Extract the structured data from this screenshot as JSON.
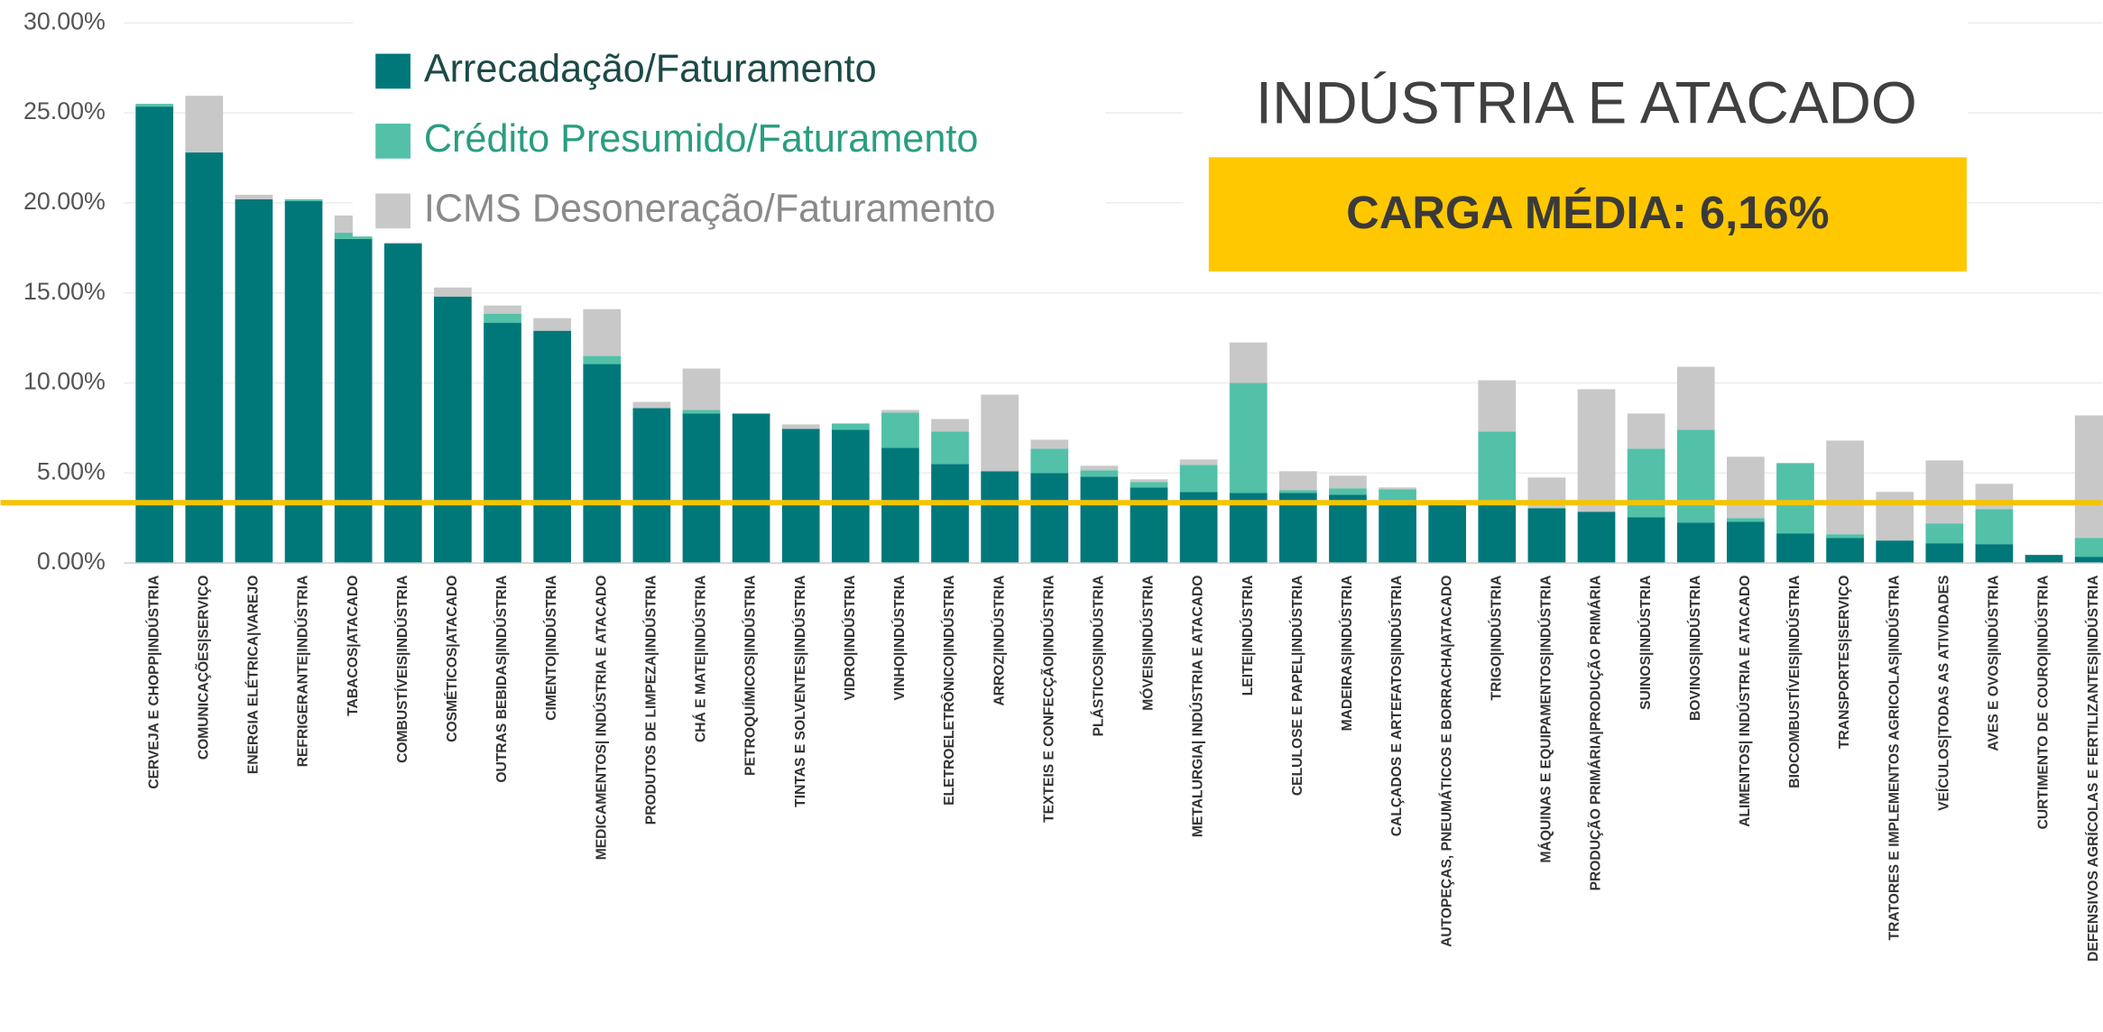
{
  "chart_data": {
    "type": "stacked_bar",
    "title": "INDÚSTRIA E ATACADO",
    "subtitle": "CARGA MÉDIA: 6,16%",
    "categories": [
      "CERVEJA E CHOPP|INDÚSTRIA",
      "COMUNICAÇÕES|SERVIÇO",
      "ENERGIA ELÉTRICA|VAREJO",
      "REFRIGERANTE|INDÚSTRIA",
      "TABACOS|ATACADO",
      "COMBUSTÍVEIS|INDÚSTRIA",
      "COSMÉTICOS|ATACADO",
      "OUTRAS BEBIDAS|INDÚSTRIA",
      "CIMENTO|INDÚSTRIA",
      "MEDICAMENTOS| INDÚSTRIA E ATACADO",
      "PRODUTOS DE LIMPEZA|INDÚSTRIA",
      "CHÁ E MATE|INDÚSTRIA",
      "PETROQUÍMICOS|INDÚSTRIA",
      "TINTAS E SOLVENTES|INDÚSTRIA",
      "VIDRO|INDÚSTRIA",
      "VINHO|INDÚSTRIA",
      "ELETROELETRÔNICO|INDÚSTRIA",
      "ARROZ|INDÚSTRIA",
      "TEXTEIS E CONFECÇÃO|INDÚSTRIA",
      "PLÁSTICOS|INDÚSTRIA",
      "MÓVEIS|INDÚSTRIA",
      "METALURGIA| INDÚSTRIA E ATACADO",
      "LEITE|INDÚSTRIA",
      "CELULOSE E PAPEL|INDÚSTRIA",
      "MADEIRAS|INDÚSTRIA",
      "CALÇADOS E ARTEFATOS|INDÚSTRIA",
      "AUTOPEÇAS, PNEUMÁTICOS E BORRACHA|ATACADO",
      "TRIGO|INDÚSTRIA",
      "MÁQUINAS E EQUIPAMENTOS|INDÚSTRIA",
      "PRODUÇÃO PRIMÁRIA|PRODUÇÃO PRIMÁRIA",
      "SUINOS|INDÚSTRIA",
      "BOVINOS|INDÚSTRIA",
      "ALIMENTOS| INDÚSTRIA E ATACADO",
      "BIOCOMBUSTÍVEIS|INDÚSTRIA",
      "TRANSPORTES|SERVIÇO",
      "TRATORES E IMPLEMENTOS AGRICOLAS|INDÚSTRIA",
      "VEÍCULOS|TODAS AS ATIVIDADES",
      "AVES E OVOS|INDÚSTRIA",
      "CURTIMENTO DE COURO|INDÚSTRIA",
      "DEFENSIVOS AGRÍCOLAS E FERTILIZANTES|INDÚSTRIA"
    ],
    "series": [
      {
        "name": "Arrecadação/Faturamento",
        "color": "#00787a",
        "label_color": "#1d4a46",
        "values": [
          25.35,
          22.8,
          20.2,
          20.1,
          18.0,
          17.75,
          14.8,
          13.35,
          12.9,
          11.05,
          8.6,
          8.3,
          8.3,
          7.45,
          7.4,
          6.4,
          5.5,
          5.1,
          5.0,
          4.8,
          4.2,
          3.95,
          3.9,
          3.9,
          3.8,
          3.5,
          3.3,
          3.3,
          3.05,
          2.85,
          2.55,
          2.25,
          2.3,
          1.65,
          1.4,
          1.25,
          1.1,
          1.05,
          0.45,
          0.35
        ]
      },
      {
        "name": "Crédito Presumido/Faturamento",
        "color": "#52c1a7",
        "label_color": "#2a9d80",
        "values": [
          0.15,
          0,
          0,
          0.1,
          0.35,
          0,
          0,
          0.5,
          0,
          0.45,
          0,
          0.2,
          0,
          0,
          0.35,
          1.95,
          1.8,
          0,
          1.35,
          0.35,
          0.3,
          1.5,
          6.1,
          0.15,
          0.35,
          0.6,
          0,
          4.0,
          0,
          0,
          3.8,
          5.15,
          0.2,
          3.9,
          0.2,
          0,
          1.1,
          1.95,
          0,
          1.05
        ]
      },
      {
        "name": "ICMS Desoneração/Faturamento",
        "color": "#c8c8c8",
        "label_color": "#8a8a8a",
        "values": [
          0,
          3.15,
          0.25,
          0,
          0.95,
          0.05,
          0.5,
          0.45,
          0.7,
          2.6,
          0.35,
          2.3,
          0,
          0.25,
          0,
          0.15,
          0.7,
          4.25,
          0.5,
          0.25,
          0.15,
          0.3,
          2.25,
          1.05,
          0.7,
          0.1,
          0,
          2.85,
          1.7,
          6.8,
          1.95,
          3.5,
          3.4,
          0,
          5.2,
          2.7,
          3.5,
          1.4,
          0,
          6.8
        ]
      }
    ],
    "reference_line": 3.35,
    "reference_color": "#f5c400",
    "badge_color": "#ffc800",
    "ylim": [
      0,
      30
    ],
    "yticks": [
      {
        "value": 0,
        "label": "0.00%"
      },
      {
        "value": 5,
        "label": "5.00%"
      },
      {
        "value": 10,
        "label": "10.00%"
      },
      {
        "value": 15,
        "label": "15.00%"
      },
      {
        "value": 20,
        "label": "20.00%"
      },
      {
        "value": 25,
        "label": "25.00%"
      },
      {
        "value": 30,
        "label": "30.00%"
      }
    ],
    "grid": true
  }
}
